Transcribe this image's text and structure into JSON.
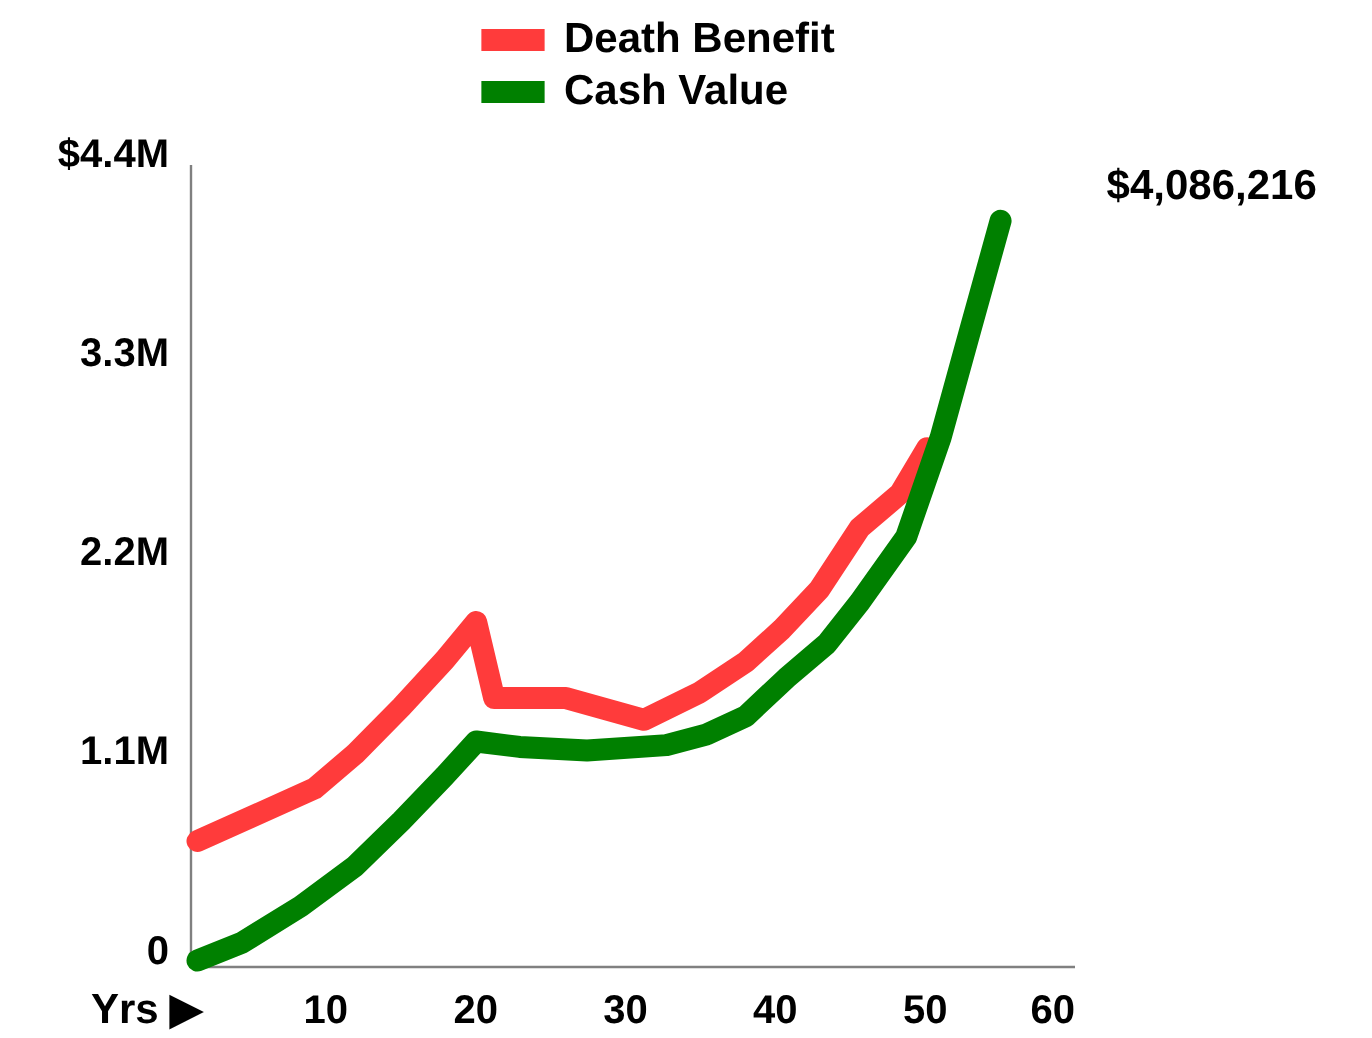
{
  "chart_data": {
    "type": "line",
    "xlabel": "Yrs ▶",
    "xlim": [
      1,
      60
    ],
    "xticks": [
      10,
      20,
      30,
      40,
      50,
      60
    ],
    "ylim": [
      -0.03,
      4.4
    ],
    "yticks": [
      {
        "value": 0,
        "label": "0"
      },
      {
        "value": 1.1,
        "label": "1.1M"
      },
      {
        "value": 2.2,
        "label": "2.2M"
      },
      {
        "value": 3.3,
        "label": "3.3M"
      },
      {
        "value": 4.4,
        "label": "$4.4M"
      }
    ],
    "legend": "top",
    "series": [
      {
        "name": "Death Benefit",
        "color": "#ff3b3b",
        "x": [
          1.5,
          5,
          9.3,
          12,
          15.1,
          18,
          20.1,
          21.3,
          26.1,
          31.3,
          35,
          38.1,
          40.5,
          43,
          45.7,
          48.4,
          50.2
        ],
        "values": [
          0.66,
          0.79,
          0.95,
          1.14,
          1.4,
          1.66,
          1.87,
          1.45,
          1.45,
          1.33,
          1.48,
          1.65,
          1.83,
          2.05,
          2.39,
          2.58,
          2.83
        ]
      },
      {
        "name": "Cash Value",
        "color": "#008000",
        "x": [
          1.5,
          4.5,
          8.4,
          12,
          15.1,
          18,
          20.1,
          23,
          27.5,
          32.8,
          35.5,
          38.1,
          40.8,
          43.5,
          45.7,
          48.8,
          51.1,
          53.1,
          55.1
        ],
        "values": [
          0.0,
          0.1,
          0.3,
          0.52,
          0.77,
          1.02,
          1.21,
          1.18,
          1.16,
          1.19,
          1.25,
          1.35,
          1.56,
          1.75,
          1.98,
          2.34,
          2.89,
          3.49,
          4.086216
        ]
      }
    ],
    "annotations": [
      {
        "text": "$4,086,216",
        "x": 55.1,
        "y": 4.086216
      }
    ]
  }
}
